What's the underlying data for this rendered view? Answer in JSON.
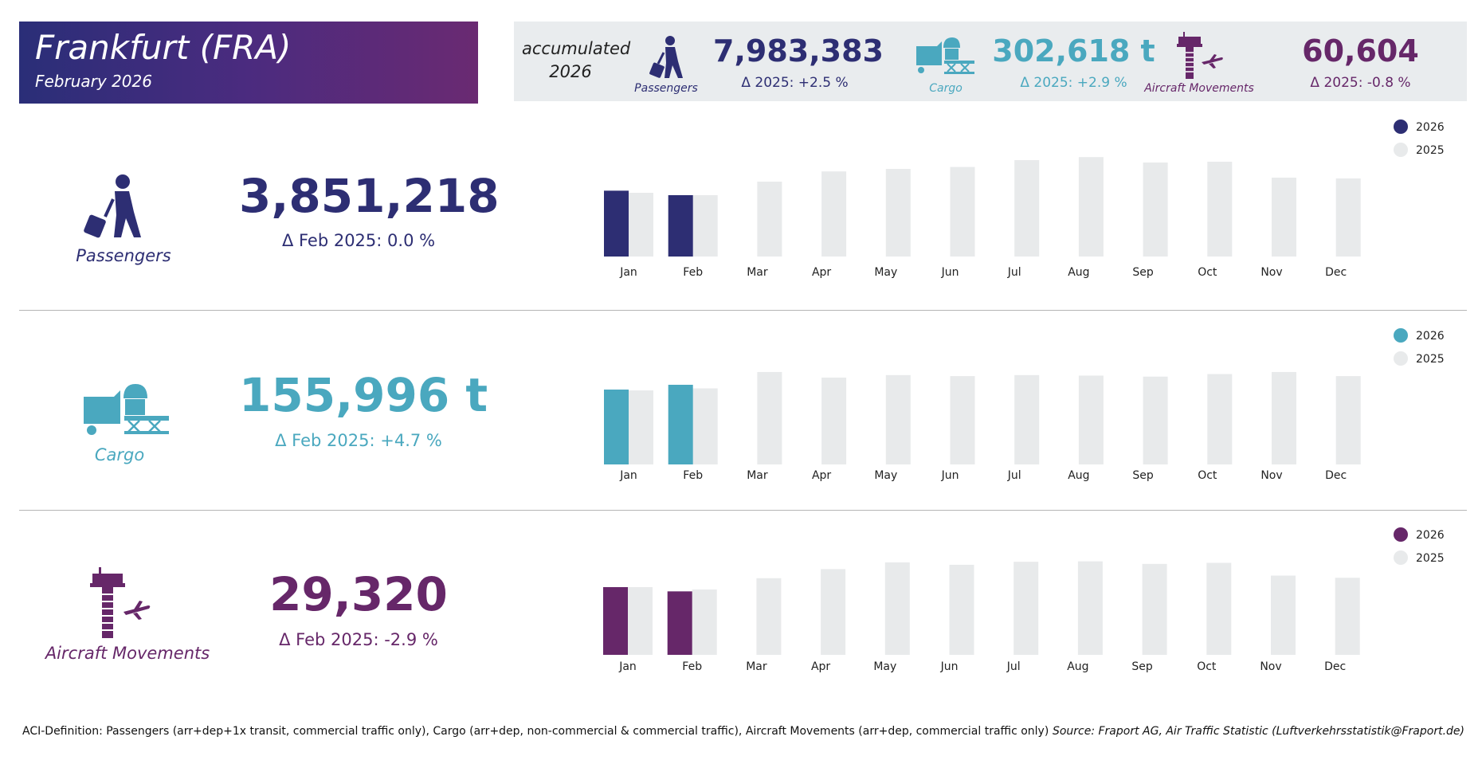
{
  "header": {
    "title": "Frankfurt (FRA)",
    "subtitle": "February 2026"
  },
  "accumulated": {
    "label_line1": "accumulated",
    "label_line2": "2026",
    "passengers": {
      "value": "7,983,383",
      "delta": "Δ 2025: +2.5 %",
      "caption": "Passengers"
    },
    "cargo": {
      "value": "302,618 t",
      "delta": "Δ 2025: +2.9 %",
      "caption": "Cargo"
    },
    "movements": {
      "value": "60,604",
      "delta": "Δ 2025: -0.8 %",
      "caption": "Aircraft Movements"
    }
  },
  "sections": {
    "passengers": {
      "caption": "Passengers",
      "value": "3,851,218",
      "delta": "Δ Feb 2025: 0.0 %"
    },
    "cargo": {
      "caption": "Cargo",
      "value": "155,996 t",
      "delta": "Δ Feb 2025: +4.7 %"
    },
    "movements": {
      "caption": "Aircraft Movements",
      "value": "29,320",
      "delta": "Δ Feb 2025: -2.9 %"
    }
  },
  "colors": {
    "passengers": "#2d2e73",
    "cargo": "#4aa8bf",
    "movements": "#662769",
    "prior_year": "#e8eaeb"
  },
  "chart_data": [
    {
      "type": "bar",
      "title": "Passengers",
      "categories": [
        "Jan",
        "Feb",
        "Mar",
        "Apr",
        "May",
        "Jun",
        "Jul",
        "Aug",
        "Sep",
        "Oct",
        "Nov",
        "Dec"
      ],
      "series": [
        {
          "name": "2026",
          "values": [
            4132165,
            3851218,
            null,
            null,
            null,
            null,
            null,
            null,
            null,
            null,
            null,
            null
          ]
        },
        {
          "name": "2025",
          "values": [
            4000000,
            3851000,
            4700000,
            5340000,
            5500000,
            5620000,
            6050000,
            6240000,
            5900000,
            5950000,
            4950000,
            4900000
          ]
        }
      ],
      "ylim": [
        0,
        6500000
      ],
      "legend": "top-right"
    },
    {
      "type": "bar",
      "title": "Cargo",
      "categories": [
        "Jan",
        "Feb",
        "Mar",
        "Apr",
        "May",
        "Jun",
        "Jul",
        "Aug",
        "Sep",
        "Oct",
        "Nov",
        "Dec"
      ],
      "series": [
        {
          "name": "2026",
          "values": [
            146622,
            155996,
            null,
            null,
            null,
            null,
            null,
            null,
            null,
            null,
            null,
            null
          ]
        },
        {
          "name": "2025",
          "values": [
            145000,
            149000,
            181000,
            170000,
            175000,
            173000,
            175000,
            174000,
            172000,
            177000,
            181000,
            173000
          ]
        }
      ],
      "ylim": [
        0,
        195000
      ],
      "legend": "top-right"
    },
    {
      "type": "bar",
      "title": "Aircraft Movements",
      "categories": [
        "Jan",
        "Feb",
        "Mar",
        "Apr",
        "May",
        "Jun",
        "Jul",
        "Aug",
        "Sep",
        "Oct",
        "Nov",
        "Dec"
      ],
      "series": [
        {
          "name": "2026",
          "values": [
            31284,
            29320,
            null,
            null,
            null,
            null,
            null,
            null,
            null,
            null,
            null,
            null
          ]
        },
        {
          "name": "2025",
          "values": [
            31300,
            30200,
            35400,
            39600,
            42700,
            41600,
            43000,
            43200,
            42000,
            42500,
            36600,
            35600
          ]
        }
      ],
      "ylim": [
        0,
        46000
      ],
      "legend": "top-right"
    }
  ],
  "footer": {
    "definition": "ACI-Definition: Passengers (arr+dep+1x transit, commercial traffic only), Cargo (arr+dep, non-commercial & commercial traffic), Aircraft Movements (arr+dep, commercial traffic only)",
    "source": "Source: Fraport AG, Air Traffic Statistic (Luftverkehrsstatistik@Fraport.de)"
  }
}
